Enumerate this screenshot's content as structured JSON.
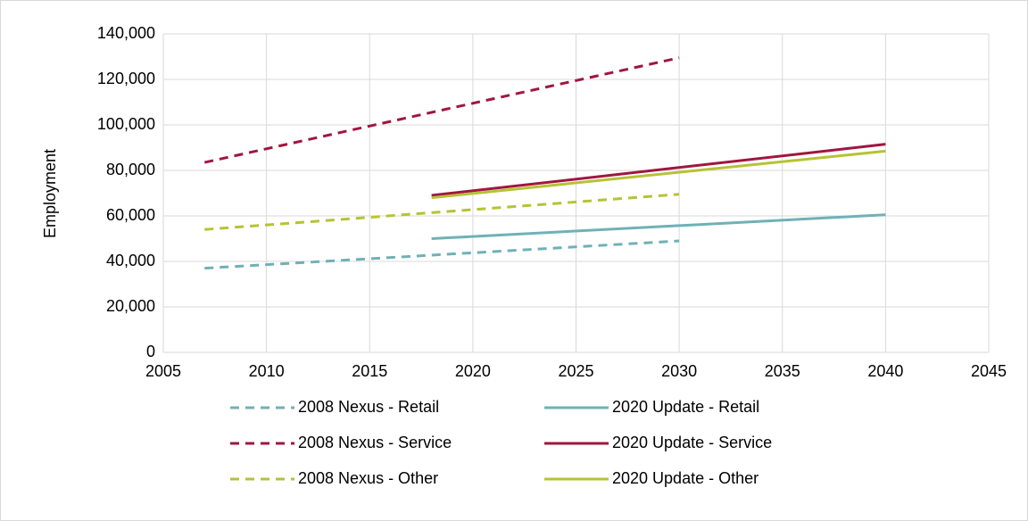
{
  "chart_data": {
    "type": "line",
    "ylabel": "Employment",
    "xlim": [
      2005,
      2045
    ],
    "xticks": [
      2005,
      2010,
      2015,
      2020,
      2025,
      2030,
      2035,
      2040,
      2045
    ],
    "ylim": [
      0,
      140000
    ],
    "yticks": [
      0,
      {
        "value": 20000,
        "label": "20,000"
      },
      {
        "value": 40000,
        "label": "40,000"
      },
      {
        "value": 60000,
        "label": "60,000"
      },
      {
        "value": 80000,
        "label": "80,000"
      },
      {
        "value": 100000,
        "label": "100,000"
      },
      {
        "value": 120000,
        "label": "120,000"
      },
      {
        "value": 140000,
        "label": "140,000"
      }
    ],
    "grid": true,
    "legend": "bottom",
    "series": [
      {
        "name": "2008 Nexus - Retail",
        "color": "#6fb1b6",
        "dashed": true,
        "x": [
          2007,
          2030
        ],
        "values": [
          37000,
          49000
        ]
      },
      {
        "name": "2020 Update - Retail",
        "color": "#6fb1b6",
        "dashed": false,
        "x": [
          2018,
          2040
        ],
        "values": [
          50000,
          60500
        ]
      },
      {
        "name": "2008 Nexus - Service",
        "color": "#a0163f",
        "dashed": true,
        "x": [
          2007,
          2030
        ],
        "values": [
          83500,
          129500
        ]
      },
      {
        "name": "2020 Update - Service",
        "color": "#a0163f",
        "dashed": false,
        "x": [
          2018,
          2040
        ],
        "values": [
          69000,
          91500
        ]
      },
      {
        "name": "2008 Nexus - Other",
        "color": "#b5c334",
        "dashed": true,
        "x": [
          2007,
          2030
        ],
        "values": [
          54000,
          69500
        ]
      },
      {
        "name": "2020 Update - Other",
        "color": "#b5c334",
        "dashed": false,
        "x": [
          2018,
          2040
        ],
        "values": [
          68000,
          88500
        ]
      }
    ]
  }
}
